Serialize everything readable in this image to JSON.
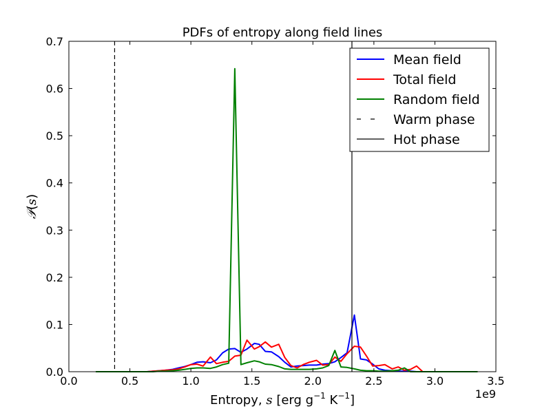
{
  "chart_data": {
    "type": "line",
    "title": "PDFs of entropy along field lines",
    "xlabel": {
      "prefix": "Entropy, ",
      "symbol": "s",
      "suffix": " [erg g",
      "sup1": "−1",
      "mid": " K",
      "sup2": "−1",
      "end": "]"
    },
    "ylabel": {
      "script": "𝒫",
      "open": "(",
      "symbol": "s",
      "close": ")"
    },
    "x_offset_label": "1e9",
    "xlim": [
      0.0,
      3.5
    ],
    "ylim": [
      0.0,
      0.7
    ],
    "x_ticks": [
      0.0,
      0.5,
      1.0,
      1.5,
      2.0,
      2.5,
      3.0,
      3.5
    ],
    "x_tick_labels": [
      "0.0",
      "0.5",
      "1.0",
      "1.5",
      "2.0",
      "2.5",
      "3.0",
      "3.5"
    ],
    "y_ticks": [
      0.0,
      0.1,
      0.2,
      0.3,
      0.4,
      0.5,
      0.6,
      0.7
    ],
    "y_tick_labels": [
      "0.0",
      "0.1",
      "0.2",
      "0.3",
      "0.4",
      "0.5",
      "0.6",
      "0.7"
    ],
    "grid": false,
    "legend_position": "top-right",
    "x": [
      0.22,
      0.28,
      0.33,
      0.38,
      0.43,
      0.48,
      0.54,
      0.59,
      0.64,
      0.69,
      0.74,
      0.79,
      0.85,
      0.9,
      0.95,
      1.0,
      1.05,
      1.1,
      1.16,
      1.21,
      1.26,
      1.31,
      1.36,
      1.41,
      1.46,
      1.52,
      1.56,
      1.61,
      1.66,
      1.72,
      1.77,
      1.82,
      1.87,
      1.92,
      1.97,
      2.03,
      2.08,
      2.13,
      2.18,
      2.23,
      2.28,
      2.34,
      2.39,
      2.44,
      2.49,
      2.54,
      2.59,
      2.65,
      2.7,
      2.75,
      2.8,
      2.85,
      2.9,
      2.96,
      3.01,
      3.06,
      3.11,
      3.16,
      3.21,
      3.27,
      3.35
    ],
    "series": [
      {
        "name": "Mean field",
        "color": "#0000ff",
        "style": "solid",
        "values": [
          0.0,
          0.0,
          0.0,
          0.0,
          0.0,
          0.0,
          0.0,
          0.0,
          0.0,
          0.001,
          0.002,
          0.003,
          0.005,
          0.008,
          0.011,
          0.015,
          0.02,
          0.021,
          0.019,
          0.025,
          0.04,
          0.048,
          0.049,
          0.041,
          0.048,
          0.06,
          0.058,
          0.043,
          0.042,
          0.032,
          0.02,
          0.01,
          0.012,
          0.013,
          0.014,
          0.014,
          0.016,
          0.017,
          0.021,
          0.03,
          0.04,
          0.12,
          0.027,
          0.025,
          0.016,
          0.006,
          0.003,
          0.002,
          0.001,
          0.001,
          0.001,
          0.0,
          0.0,
          0.0,
          0.0,
          0.0,
          0.0,
          0.0,
          0.0,
          0.0,
          0.0
        ]
      },
      {
        "name": "Total field",
        "color": "#ff0000",
        "style": "solid",
        "values": [
          0.0,
          0.0,
          0.0,
          0.0,
          0.0,
          0.0,
          0.0,
          0.0,
          0.0,
          0.001,
          0.002,
          0.003,
          0.004,
          0.006,
          0.01,
          0.015,
          0.016,
          0.012,
          0.031,
          0.017,
          0.02,
          0.022,
          0.033,
          0.035,
          0.067,
          0.048,
          0.053,
          0.063,
          0.052,
          0.058,
          0.03,
          0.013,
          0.008,
          0.015,
          0.02,
          0.024,
          0.014,
          0.015,
          0.031,
          0.022,
          0.038,
          0.054,
          0.052,
          0.033,
          0.012,
          0.013,
          0.015,
          0.006,
          0.01,
          0.003,
          0.005,
          0.012,
          0.0,
          0.0,
          0.0,
          0.0,
          0.0,
          0.0,
          0.0,
          0.0,
          0.0
        ]
      },
      {
        "name": "Random field",
        "color": "#008000",
        "style": "solid",
        "values": [
          0.0,
          0.0,
          0.0,
          0.0,
          0.0,
          0.0,
          0.0,
          0.0,
          0.0,
          0.0,
          0.001,
          0.001,
          0.002,
          0.003,
          0.005,
          0.007,
          0.008,
          0.008,
          0.007,
          0.01,
          0.015,
          0.018,
          0.642,
          0.015,
          0.019,
          0.023,
          0.021,
          0.016,
          0.015,
          0.011,
          0.006,
          0.005,
          0.005,
          0.005,
          0.005,
          0.006,
          0.008,
          0.013,
          0.045,
          0.01,
          0.009,
          0.006,
          0.003,
          0.002,
          0.002,
          0.001,
          0.001,
          0.002,
          0.003,
          0.008,
          0.0,
          0.0,
          0.0,
          0.0,
          0.0,
          0.0,
          0.0,
          0.0,
          0.0,
          0.0,
          0.0
        ]
      }
    ],
    "vertical_lines": [
      {
        "name": "Warm phase",
        "x": 0.375,
        "color": "#000000",
        "style": "dashed"
      },
      {
        "name": "Hot phase",
        "x": 2.32,
        "color": "#000000",
        "style": "solid"
      }
    ]
  }
}
